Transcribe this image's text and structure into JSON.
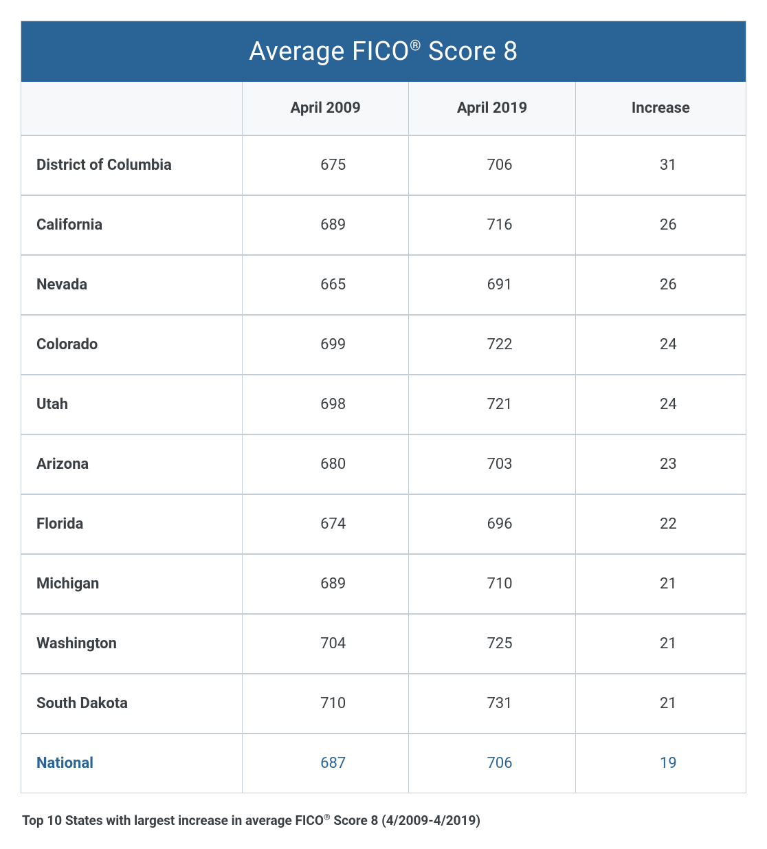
{
  "table": {
    "title_prefix": "Average FICO",
    "title_registered": "®",
    "title_suffix": " Score 8",
    "title_bg_color": "#2a6496",
    "title_text_color": "#ffffff",
    "title_fontsize": 38,
    "header_bg_color": "#f7f8f9",
    "header_text_color": "#3a3f44",
    "header_fontsize": 22,
    "border_color": "#c5cdd4",
    "body_text_color": "#3a3f44",
    "body_fontsize": 22,
    "highlight_row_color": "#2a6496",
    "columns": [
      "",
      "April 2009",
      "April 2019",
      "Increase"
    ],
    "rows": [
      {
        "label": "District of Columbia",
        "c1": "675",
        "c2": "706",
        "c3": "31",
        "highlight": false
      },
      {
        "label": "California",
        "c1": "689",
        "c2": "716",
        "c3": "26",
        "highlight": false
      },
      {
        "label": "Nevada",
        "c1": "665",
        "c2": "691",
        "c3": "26",
        "highlight": false
      },
      {
        "label": "Colorado",
        "c1": "699",
        "c2": "722",
        "c3": "24",
        "highlight": false
      },
      {
        "label": "Utah",
        "c1": "698",
        "c2": "721",
        "c3": "24",
        "highlight": false
      },
      {
        "label": "Arizona",
        "c1": "680",
        "c2": "703",
        "c3": "23",
        "highlight": false
      },
      {
        "label": "Florida",
        "c1": "674",
        "c2": "696",
        "c3": "22",
        "highlight": false
      },
      {
        "label": "Michigan",
        "c1": "689",
        "c2": "710",
        "c3": "21",
        "highlight": false
      },
      {
        "label": "Washington",
        "c1": "704",
        "c2": "725",
        "c3": "21",
        "highlight": false
      },
      {
        "label": "South Dakota",
        "c1": "710",
        "c2": "731",
        "c3": "21",
        "highlight": false
      },
      {
        "label": "National",
        "c1": "687",
        "c2": "706",
        "c3": "19",
        "highlight": true
      }
    ],
    "column_widths_pct": [
      30.5,
      23,
      23,
      23.5
    ]
  },
  "caption": {
    "prefix": "Top 10 States with largest increase in average FICO",
    "registered": "®",
    "suffix": " Score 8 (4/2009-4/2019)",
    "fontsize": 19,
    "text_color": "#3a3f44"
  }
}
